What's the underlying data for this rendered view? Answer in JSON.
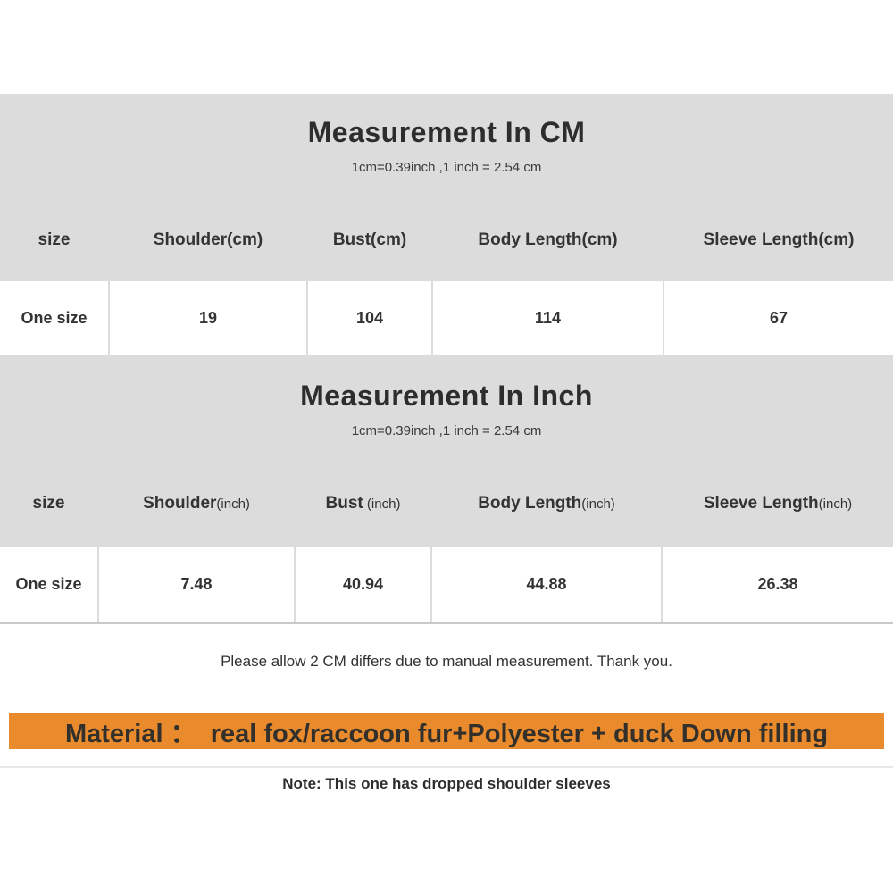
{
  "colors": {
    "section_bg": "#dcdcdc",
    "cell_bg": "#ffffff",
    "text_dark": "#333333",
    "banner_bg": "#e98b2d",
    "banner_text": "#33302b",
    "table_bottom_line": "#c9c9c9",
    "note_divider": "#e8e8e8"
  },
  "cm_section": {
    "title": "Measurement In CM",
    "subtitle": "1cm=0.39inch ,1 inch = 2.54 cm",
    "columns": [
      "size",
      "Shoulder(cm)",
      "Bust(cm)",
      "Body Length(cm)",
      "Sleeve Length(cm)"
    ],
    "rows": [
      [
        "One size",
        "19",
        "104",
        "114",
        "67"
      ]
    ]
  },
  "inch_section": {
    "title": "Measurement In Inch",
    "subtitle": "1cm=0.39inch ,1 inch = 2.54 cm",
    "columns_main": [
      "size",
      "Shoulder",
      "Bust",
      "Body Length",
      "Sleeve Length"
    ],
    "columns_unit": [
      "",
      "(inch)",
      " (inch)",
      "(inch)",
      "(inch)"
    ],
    "rows": [
      [
        "One size",
        "7.48",
        "40.94",
        "44.88",
        "26.38"
      ]
    ]
  },
  "notes": {
    "tolerance": "Please allow 2 CM differs due to manual measurement. Thank you.",
    "material": "Material ：  real fox/raccoon fur+Polyester + duck Down filling",
    "bottom": "Note: This one has dropped shoulder sleeves"
  }
}
